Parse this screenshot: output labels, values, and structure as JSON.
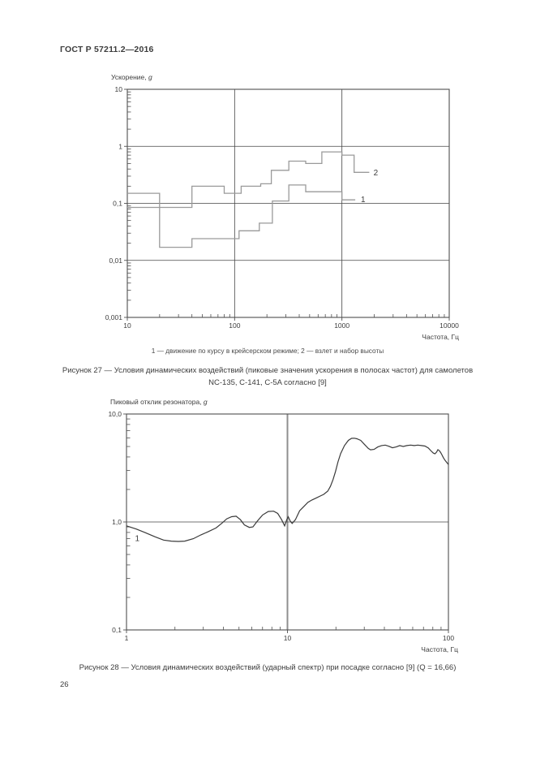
{
  "document": {
    "header": "ГОСТ Р 57211.2—2016",
    "page_number": "26"
  },
  "colors": {
    "text": "#3c3c3c",
    "axis": "#4f4f4f",
    "grid": "#454545",
    "fig27_curve": "#9a9a9a",
    "fig28_curve": "#3a3a3a",
    "fig28_vgrid": "#8f8f8f"
  },
  "chart_data": [
    {
      "id": "fig27",
      "type": "line",
      "title": "",
      "ylabel": "Ускорение, g",
      "xlabel": "Частота, Гц",
      "xscale": "log",
      "yscale": "log",
      "xlim": [
        10,
        10000
      ],
      "ylim": [
        0.001,
        10
      ],
      "x_ticks": [
        {
          "v": 10,
          "label": "10"
        },
        {
          "v": 100,
          "label": "100"
        },
        {
          "v": 1000,
          "label": "1000"
        },
        {
          "v": 10000,
          "label": "10000"
        }
      ],
      "y_ticks": [
        {
          "v": 10,
          "label": "10"
        },
        {
          "v": 1,
          "label": "1"
        },
        {
          "v": 0.1,
          "label": "0,1"
        },
        {
          "v": 0.01,
          "label": "0,01"
        },
        {
          "v": 0.001,
          "label": "0,001"
        }
      ],
      "grid_x": [
        100,
        1000
      ],
      "grid_y": [
        1,
        0.1,
        0.01
      ],
      "grid_x_width": 0.8,
      "curve_width": 1.3,
      "legend": "1 — движение по курсу в крейсерском режиме; 2 — взлет и набор высоты",
      "caption": [
        "Рисунок 27 — Условия динамических воздействий (пиковые значения ускорения в полосах частот) для самолетов",
        "NC-135, C-141, C-5A согласно [9]"
      ],
      "series": [
        {
          "name": "движение по курсу в крейсерском режиме",
          "label": "1",
          "label_pos": [
            1500,
            0.117
          ],
          "step": true,
          "points": [
            [
              10,
              0.15
            ],
            [
              20,
              0.15
            ],
            [
              20,
              0.017
            ],
            [
              40,
              0.017
            ],
            [
              40,
              0.024
            ],
            [
              110,
              0.024
            ],
            [
              110,
              0.033
            ],
            [
              170,
              0.033
            ],
            [
              170,
              0.045
            ],
            [
              225,
              0.045
            ],
            [
              225,
              0.11
            ],
            [
              320,
              0.11
            ],
            [
              320,
              0.21
            ],
            [
              460,
              0.21
            ],
            [
              460,
              0.16
            ],
            [
              1000,
              0.16
            ],
            [
              1000,
              0.115
            ],
            [
              1330,
              0.115
            ]
          ]
        },
        {
          "name": "взлет и набор высоты",
          "label": "2",
          "label_pos": [
            1970,
            0.345
          ],
          "step": true,
          "points": [
            [
              10,
              0.085
            ],
            [
              40,
              0.085
            ],
            [
              40,
              0.2
            ],
            [
              80,
              0.2
            ],
            [
              80,
              0.15
            ],
            [
              115,
              0.15
            ],
            [
              115,
              0.2
            ],
            [
              175,
              0.2
            ],
            [
              175,
              0.22
            ],
            [
              220,
              0.22
            ],
            [
              220,
              0.38
            ],
            [
              320,
              0.38
            ],
            [
              320,
              0.55
            ],
            [
              460,
              0.55
            ],
            [
              460,
              0.5
            ],
            [
              650,
              0.5
            ],
            [
              650,
              0.8
            ],
            [
              1000,
              0.8
            ],
            [
              1000,
              0.7
            ],
            [
              1300,
              0.7
            ],
            [
              1300,
              0.35
            ],
            [
              1800,
              0.35
            ]
          ]
        }
      ]
    },
    {
      "id": "fig28",
      "type": "line",
      "title": "",
      "ylabel": "Пиковый отклик резонатора, g",
      "xlabel": "Частота, Гц",
      "xscale": "log",
      "yscale": "log",
      "xlim": [
        1,
        100
      ],
      "ylim": [
        0.1,
        10
      ],
      "x_ticks": [
        {
          "v": 1,
          "label": "1"
        },
        {
          "v": 10,
          "label": "10"
        },
        {
          "v": 100,
          "label": "100"
        }
      ],
      "y_ticks": [
        {
          "v": 10,
          "label": "10,0"
        },
        {
          "v": 1,
          "label": "1,0"
        },
        {
          "v": 0.1,
          "label": "0,1"
        }
      ],
      "grid_x": [
        10
      ],
      "grid_y": [
        1
      ],
      "grid_x_width": 2,
      "curve_width": 1.2,
      "caption": [
        "Рисунок 28 — Условия динамических воздействий (ударный спектр) при посадке согласно [9] (Q = 16,66)"
      ],
      "series": [
        {
          "name": "ударный спектр при посадке, Q = 16,66",
          "label": "1",
          "label_pos": [
            1.13,
            0.71
          ],
          "step": false,
          "points": [
            [
              1,
              0.92
            ],
            [
              1.15,
              0.86
            ],
            [
              1.3,
              0.8
            ],
            [
              1.5,
              0.73
            ],
            [
              1.7,
              0.68
            ],
            [
              1.9,
              0.665
            ],
            [
              2.1,
              0.66
            ],
            [
              2.3,
              0.665
            ],
            [
              2.6,
              0.7
            ],
            [
              2.9,
              0.76
            ],
            [
              3.2,
              0.81
            ],
            [
              3.6,
              0.88
            ],
            [
              3.9,
              0.97
            ],
            [
              4.2,
              1.07
            ],
            [
              4.5,
              1.12
            ],
            [
              4.8,
              1.13
            ],
            [
              5.1,
              1.05
            ],
            [
              5.4,
              0.94
            ],
            [
              5.8,
              0.89
            ],
            [
              6.1,
              0.9
            ],
            [
              6.5,
              1.02
            ],
            [
              7.0,
              1.16
            ],
            [
              7.6,
              1.25
            ],
            [
              8.2,
              1.26
            ],
            [
              8.7,
              1.2
            ],
            [
              9.2,
              1.05
            ],
            [
              9.6,
              0.92
            ],
            [
              9.9,
              1.05
            ],
            [
              10.1,
              1.12
            ],
            [
              10.4,
              1.02
            ],
            [
              10.7,
              0.97
            ],
            [
              11.2,
              1.05
            ],
            [
              11.9,
              1.27
            ],
            [
              12.7,
              1.4
            ],
            [
              13.4,
              1.52
            ],
            [
              14.2,
              1.6
            ],
            [
              15,
              1.66
            ],
            [
              16,
              1.74
            ],
            [
              16.8,
              1.8
            ],
            [
              17.8,
              1.93
            ],
            [
              18.5,
              2.14
            ],
            [
              19.2,
              2.47
            ],
            [
              19.9,
              2.94
            ],
            [
              20.6,
              3.6
            ],
            [
              21.4,
              4.3
            ],
            [
              22.6,
              5.1
            ],
            [
              23.9,
              5.7
            ],
            [
              25,
              5.95
            ],
            [
              26,
              5.97
            ],
            [
              27,
              5.9
            ],
            [
              28.5,
              5.7
            ],
            [
              30,
              5.25
            ],
            [
              31.8,
              4.8
            ],
            [
              32.8,
              4.66
            ],
            [
              34.5,
              4.7
            ],
            [
              36.4,
              4.95
            ],
            [
              38.4,
              5.1
            ],
            [
              40.5,
              5.15
            ],
            [
              42.6,
              5.03
            ],
            [
              44.9,
              4.87
            ],
            [
              47.3,
              4.95
            ],
            [
              49.8,
              5.1
            ],
            [
              52.4,
              5.0
            ],
            [
              55.2,
              5.1
            ],
            [
              58.2,
              5.15
            ],
            [
              61.3,
              5.1
            ],
            [
              64.6,
              5.15
            ],
            [
              68,
              5.1
            ],
            [
              71.5,
              5.05
            ],
            [
              75,
              4.85
            ],
            [
              78,
              4.55
            ],
            [
              80.5,
              4.35
            ],
            [
              82.5,
              4.28
            ],
            [
              84.5,
              4.45
            ],
            [
              86,
              4.67
            ],
            [
              87.5,
              4.6
            ],
            [
              89.4,
              4.42
            ],
            [
              91,
              4.2
            ],
            [
              92.9,
              3.95
            ],
            [
              95,
              3.75
            ],
            [
              97,
              3.6
            ],
            [
              100,
              3.4
            ]
          ]
        }
      ]
    }
  ]
}
